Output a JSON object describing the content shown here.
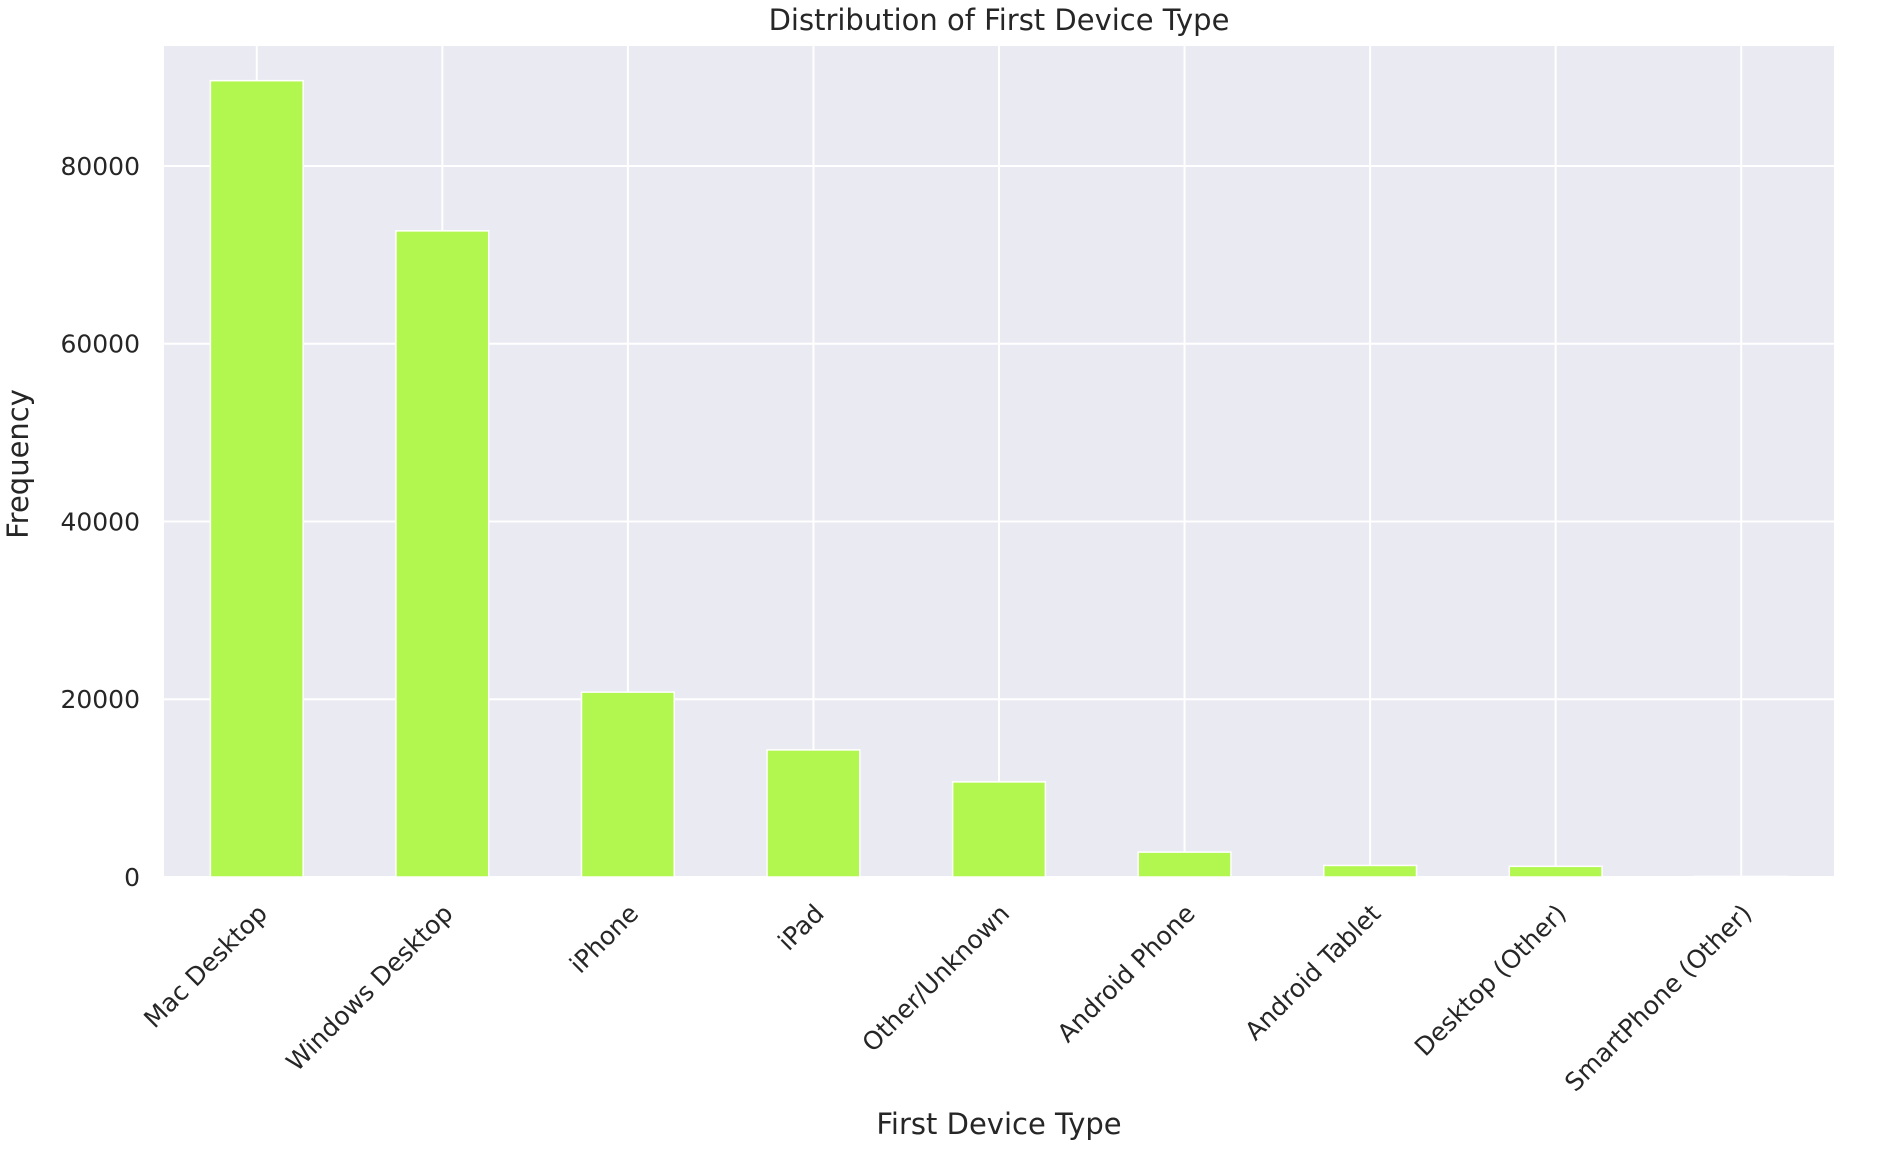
{
  "chart_data": {
    "type": "bar",
    "title": "Distribution of First Device Type",
    "xlabel": "First Device Type",
    "ylabel": "Frequency",
    "categories": [
      "Mac Desktop",
      "Windows Desktop",
      "iPhone",
      "iPad",
      "Other/Unknown",
      "Android Phone",
      "Android Tablet",
      "Desktop (Other)",
      "SmartPhone (Other)"
    ],
    "values": [
      89600,
      72700,
      20800,
      14300,
      10700,
      2800,
      1300,
      1200,
      60
    ],
    "ylim": [
      0,
      93500
    ],
    "yticks": [
      0,
      20000,
      40000,
      60000,
      80000
    ],
    "grid": true,
    "bar_color": "#b2f74f",
    "background_color": "#eaeaf2"
  }
}
